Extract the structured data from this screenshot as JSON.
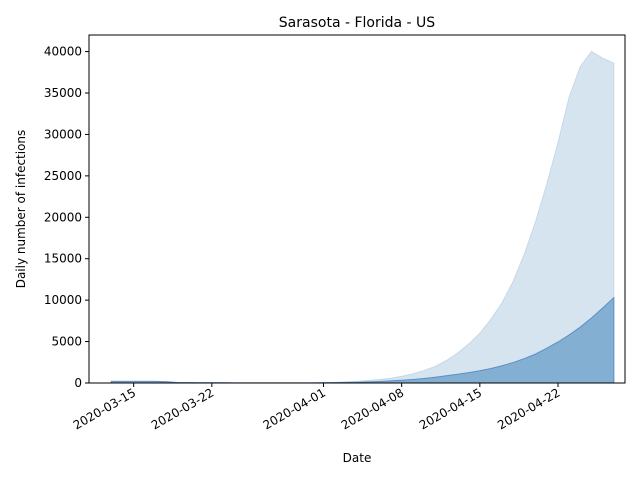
{
  "chart_data": {
    "type": "area",
    "title": "Sarasota - Florida - US",
    "xlabel": "Date",
    "ylabel": "Daily number of infections",
    "x_ticks": [
      "2020-03-15",
      "2020-03-22",
      "2020-04-01",
      "2020-04-08",
      "2020-04-15",
      "2020-04-22"
    ],
    "y_ticks": [
      0,
      5000,
      10000,
      15000,
      20000,
      25000,
      30000,
      35000,
      40000
    ],
    "xlim": [
      "2020-03-11",
      "2020-04-28"
    ],
    "ylim": [
      0,
      42000
    ],
    "grid": false,
    "colors": {
      "upper_band": "#d6e4f0",
      "lower_band": "#83afd3",
      "edge": "#5b8fc4"
    },
    "dates": [
      "2020-03-13",
      "2020-03-14",
      "2020-03-15",
      "2020-03-16",
      "2020-03-17",
      "2020-03-18",
      "2020-03-19",
      "2020-03-20",
      "2020-03-21",
      "2020-03-22",
      "2020-03-23",
      "2020-03-24",
      "2020-03-25",
      "2020-03-26",
      "2020-03-27",
      "2020-03-28",
      "2020-03-29",
      "2020-03-30",
      "2020-03-31",
      "2020-04-01",
      "2020-04-02",
      "2020-04-03",
      "2020-04-04",
      "2020-04-05",
      "2020-04-06",
      "2020-04-07",
      "2020-04-08",
      "2020-04-09",
      "2020-04-10",
      "2020-04-11",
      "2020-04-12",
      "2020-04-13",
      "2020-04-14",
      "2020-04-15",
      "2020-04-16",
      "2020-04-17",
      "2020-04-18",
      "2020-04-19",
      "2020-04-20",
      "2020-04-21",
      "2020-04-22",
      "2020-04-23",
      "2020-04-24",
      "2020-04-25",
      "2020-04-26",
      "2020-04-27"
    ],
    "series": [
      {
        "values": [
          200,
          200,
          200,
          200,
          200,
          150,
          50,
          40,
          30,
          30,
          30,
          20,
          20,
          20,
          20,
          20,
          20,
          20,
          20,
          30,
          40,
          60,
          90,
          130,
          180,
          250,
          330,
          430,
          550,
          700,
          870,
          1050,
          1250,
          1480,
          1750,
          2080,
          2480,
          2950,
          3500,
          4200,
          4950,
          5800,
          6750,
          7850,
          9050,
          10300
        ]
      },
      {
        "values": [
          200,
          200,
          200,
          200,
          200,
          150,
          50,
          40,
          30,
          30,
          30,
          20,
          20,
          20,
          20,
          20,
          20,
          20,
          20,
          50,
          80,
          130,
          200,
          300,
          420,
          580,
          800,
          1100,
          1500,
          2000,
          2700,
          3600,
          4700,
          6000,
          7700,
          9700,
          12300,
          15600,
          19500,
          24000,
          29000,
          34500,
          38200,
          40000,
          39200,
          38600
        ]
      }
    ]
  }
}
